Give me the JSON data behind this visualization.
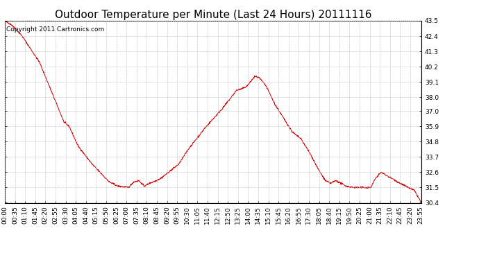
{
  "title": "Outdoor Temperature per Minute (Last 24 Hours) 20111116",
  "copyright_text": "Copyright 2011 Cartronics.com",
  "line_color": "#cc0000",
  "background_color": "#ffffff",
  "plot_background_color": "#ffffff",
  "grid_color": "#bbbbbb",
  "ylim": [
    30.4,
    43.5
  ],
  "yticks": [
    30.4,
    31.5,
    32.6,
    33.7,
    34.8,
    35.9,
    37.0,
    38.0,
    39.1,
    40.2,
    41.3,
    42.4,
    43.5
  ],
  "xtick_labels": [
    "00:00",
    "00:35",
    "01:10",
    "01:45",
    "02:20",
    "02:55",
    "03:30",
    "04:05",
    "04:40",
    "05:15",
    "05:50",
    "06:25",
    "07:00",
    "07:35",
    "08:10",
    "08:45",
    "09:20",
    "09:55",
    "10:30",
    "11:05",
    "11:40",
    "12:15",
    "12:50",
    "13:25",
    "14:00",
    "14:35",
    "15:10",
    "15:45",
    "16:20",
    "16:55",
    "17:30",
    "18:05",
    "18:40",
    "19:15",
    "19:50",
    "20:25",
    "21:00",
    "21:35",
    "22:10",
    "22:45",
    "23:20",
    "23:55"
  ],
  "keypoints_t": [
    0,
    0.4,
    1.0,
    2.0,
    3.4,
    3.7,
    4.2,
    5.0,
    6.0,
    6.5,
    7.1,
    7.4,
    7.7,
    8.0,
    8.3,
    8.7,
    9.0,
    9.3,
    9.6,
    10.0,
    10.5,
    11.0,
    11.5,
    12.0,
    12.5,
    13.0,
    13.3,
    13.6,
    13.9,
    14.1,
    14.35,
    14.6,
    15.0,
    15.5,
    16.0,
    16.5,
    17.0,
    17.5,
    18.0,
    18.4,
    18.7,
    19.0,
    19.3,
    19.6,
    20.0,
    20.5,
    21.0,
    21.3,
    21.6,
    22.0,
    22.3,
    22.7,
    23.0,
    23.5,
    23.92
  ],
  "keypoints_v": [
    43.5,
    43.2,
    42.4,
    40.5,
    36.2,
    35.9,
    34.5,
    33.2,
    31.9,
    31.6,
    31.5,
    31.9,
    32.0,
    31.6,
    31.8,
    32.0,
    32.2,
    32.5,
    32.8,
    33.2,
    34.2,
    35.0,
    35.8,
    36.5,
    37.2,
    38.0,
    38.5,
    38.6,
    38.8,
    39.1,
    39.5,
    39.4,
    38.8,
    37.5,
    36.5,
    35.5,
    35.0,
    34.0,
    32.8,
    32.0,
    31.8,
    32.0,
    31.8,
    31.6,
    31.5,
    31.5,
    31.5,
    32.2,
    32.6,
    32.3,
    32.1,
    31.8,
    31.6,
    31.3,
    30.4
  ],
  "title_fontsize": 11,
  "tick_fontsize": 6.5,
  "copyright_fontsize": 6.5
}
